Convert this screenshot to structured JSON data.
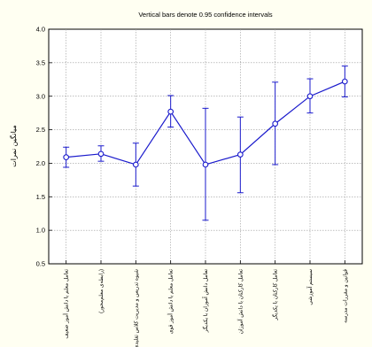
{
  "chart_data": {
    "type": "line",
    "title": "Vertical bars denote 0.95 confidence intervals",
    "xlabel": "",
    "ylabel": "میانگین نمرات",
    "ylim": [
      0.5,
      4.0
    ],
    "yticks": [
      "0.5",
      "1.0",
      "1.5",
      "2.0",
      "2.5",
      "3.0",
      "3.5",
      "4.0"
    ],
    "grid": true,
    "series_color": "#1a1acc",
    "categories": [
      "تعامل معلم با دانش آموز ضعیف",
      "(رابطه‌ی معلم‌محور)",
      "شیوه تدریس و مدیریت کلاس تقلیدی",
      "تعامل معلم با دانش آموز قوی",
      "تعامل دانش آموزان با یکدیگر",
      "تعامل کارکنان با دانش آموزان",
      "تعامل کارکنان با یکدیگر",
      "سیستم آموزشی",
      "قوانین و مقررات مدرسه"
    ],
    "values": [
      2.09,
      2.14,
      1.98,
      2.77,
      1.98,
      2.13,
      2.59,
      3.0,
      3.22
    ],
    "ci_lower": [
      1.94,
      2.03,
      1.66,
      2.54,
      1.15,
      1.56,
      1.98,
      2.75,
      2.99
    ],
    "ci_upper": [
      2.24,
      2.26,
      2.3,
      3.01,
      2.82,
      2.69,
      3.21,
      3.26,
      3.45
    ]
  }
}
